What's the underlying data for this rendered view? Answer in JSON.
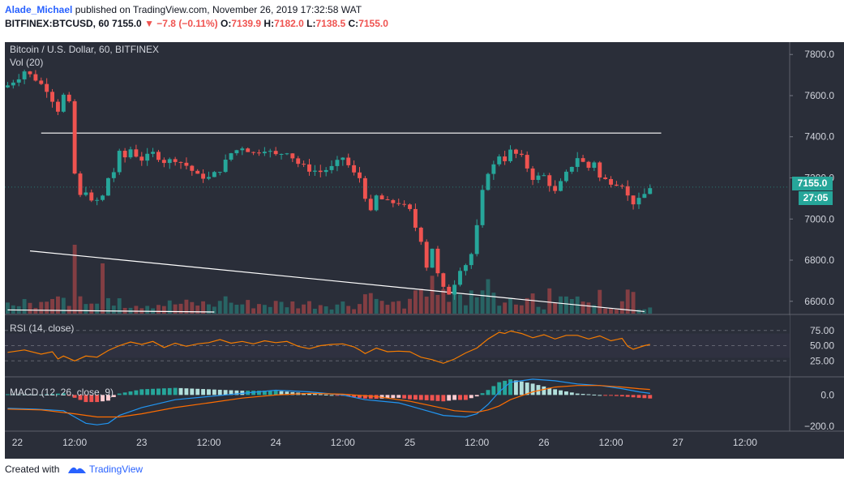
{
  "header": {
    "author": "Alade_Michael",
    "published": "published on TradingView.com, November 26, 2019 17:32:58 WAT",
    "symbol_line": "BITFINEX:BTCUSD, 60",
    "last": "7155.0",
    "change": "▼ −7.8 (−0.11%)",
    "o_label": "O:",
    "o": "7139.9",
    "h_label": "H:",
    "h": "7182.0",
    "l_label": "L:",
    "l": "7138.5",
    "c_label": "C:",
    "c": "7155.0"
  },
  "overlay": {
    "series_title": "Bitcoin / U.S. Dollar, 60, BITFINEX",
    "vol_label": "Vol (20)",
    "rsi_label": "RSI (14, close)",
    "macd_label": "MACD (12, 26, close, 9)",
    "price_tag": "7155.0",
    "countdown": "27:05"
  },
  "footer": {
    "created_with": "Created with",
    "brand": "TradingView"
  },
  "colors": {
    "background": "#2a2e39",
    "up": "#26a69a",
    "down": "#ef5350",
    "rsi": "#f57c00",
    "macd": "#2196f3",
    "signal": "#ff6d00",
    "axis_text": "#d1d4dc",
    "trendline": "#ffffff"
  },
  "chart_data": {
    "type": "candlestick",
    "price_axis": {
      "ticks": [
        6600,
        6800,
        7000,
        7200,
        7400,
        7600,
        7800
      ],
      "tick_labels": [
        "6600.0",
        "6800.0",
        "7000.0",
        "7200.0",
        "7400.0",
        "7600.0",
        "7800.0"
      ]
    },
    "rsi_axis": {
      "ticks": [
        25,
        50,
        75
      ],
      "tick_labels": [
        "25.00",
        "50.00",
        "75.00"
      ]
    },
    "macd_axis": {
      "ticks": [
        -200,
        0
      ],
      "tick_labels": [
        "−200.0",
        "0.0"
      ]
    },
    "time_axis": {
      "labels": [
        "22",
        "12:00",
        "23",
        "12:00",
        "24",
        "12:00",
        "25",
        "12:00",
        "26",
        "12:00",
        "27",
        "12:00"
      ],
      "hours": [
        0,
        12,
        24,
        36,
        48,
        60,
        72,
        84,
        96,
        108,
        120,
        132
      ]
    },
    "hour_range": [
      -0.5,
      140
    ],
    "trendlines": [
      {
        "name": "resistance",
        "from": [
          6,
          7418
        ],
        "to": [
          117,
          7418
        ]
      },
      {
        "name": "support",
        "from": [
          4,
          6845
        ],
        "to": [
          114,
          6550
        ]
      },
      {
        "name": "upper-left",
        "from": [
          0,
          6558
        ],
        "to": [
          37,
          6548
        ]
      }
    ],
    "close_path": [
      [
        0,
        7650
      ],
      [
        2,
        7690
      ],
      [
        3,
        7720
      ],
      [
        5,
        7680
      ],
      [
        7,
        7630
      ],
      [
        9,
        7530
      ],
      [
        10,
        7600
      ],
      [
        11,
        7560
      ],
      [
        12,
        7220
      ],
      [
        13,
        7110
      ],
      [
        14,
        7140
      ],
      [
        15,
        7080
      ],
      [
        16,
        7090
      ],
      [
        17,
        7110
      ],
      [
        18,
        7200
      ],
      [
        19,
        7230
      ],
      [
        20,
        7320
      ],
      [
        21,
        7300
      ],
      [
        22,
        7340
      ],
      [
        23,
        7310
      ],
      [
        24,
        7290
      ],
      [
        26,
        7320
      ],
      [
        28,
        7280
      ],
      [
        30,
        7290
      ],
      [
        32,
        7260
      ],
      [
        34,
        7210
      ],
      [
        36,
        7200
      ],
      [
        38,
        7240
      ],
      [
        40,
        7320
      ],
      [
        42,
        7350
      ],
      [
        44,
        7320
      ],
      [
        46,
        7340
      ],
      [
        48,
        7310
      ],
      [
        50,
        7330
      ],
      [
        52,
        7270
      ],
      [
        54,
        7240
      ],
      [
        56,
        7230
      ],
      [
        58,
        7250
      ],
      [
        60,
        7300
      ],
      [
        62,
        7220
      ],
      [
        63,
        7200
      ],
      [
        64,
        7110
      ],
      [
        65,
        7030
      ],
      [
        66,
        7110
      ],
      [
        68,
        7080
      ],
      [
        70,
        7080
      ],
      [
        72,
        7040
      ],
      [
        73,
        6960
      ],
      [
        74,
        6900
      ],
      [
        75,
        6770
      ],
      [
        76,
        6860
      ],
      [
        77,
        6730
      ],
      [
        78,
        6660
      ],
      [
        79,
        6640
      ],
      [
        80,
        6690
      ],
      [
        81,
        6760
      ],
      [
        82,
        6780
      ],
      [
        83,
        6830
      ],
      [
        84,
        6960
      ],
      [
        85,
        7130
      ],
      [
        86,
        7230
      ],
      [
        87,
        7260
      ],
      [
        88,
        7310
      ],
      [
        89,
        7290
      ],
      [
        90,
        7330
      ],
      [
        92,
        7300
      ],
      [
        94,
        7200
      ],
      [
        96,
        7210
      ],
      [
        98,
        7130
      ],
      [
        100,
        7220
      ],
      [
        102,
        7300
      ],
      [
        104,
        7250
      ],
      [
        105,
        7280
      ],
      [
        106,
        7200
      ],
      [
        108,
        7180
      ],
      [
        110,
        7170
      ],
      [
        111,
        7110
      ],
      [
        112,
        7080
      ],
      [
        113,
        7090
      ],
      [
        114,
        7120
      ],
      [
        115,
        7155
      ]
    ],
    "volume_spikes": [
      {
        "hour": 12,
        "relative": 1.0,
        "direction": "down"
      },
      {
        "hour": 17,
        "relative": 0.73,
        "direction": "down"
      },
      {
        "hour": 76,
        "relative": 0.55,
        "direction": "down"
      },
      {
        "hour": 86,
        "relative": 0.5,
        "direction": "up"
      }
    ],
    "rsi_path": [
      [
        0,
        39
      ],
      [
        3,
        43
      ],
      [
        6,
        36
      ],
      [
        8,
        40
      ],
      [
        9,
        28
      ],
      [
        10,
        33
      ],
      [
        12,
        25
      ],
      [
        14,
        33
      ],
      [
        16,
        31
      ],
      [
        18,
        42
      ],
      [
        20,
        50
      ],
      [
        22,
        56
      ],
      [
        24,
        52
      ],
      [
        26,
        57
      ],
      [
        28,
        47
      ],
      [
        30,
        54
      ],
      [
        32,
        49
      ],
      [
        34,
        53
      ],
      [
        36,
        55
      ],
      [
        38,
        60
      ],
      [
        40,
        54
      ],
      [
        42,
        57
      ],
      [
        44,
        53
      ],
      [
        46,
        58
      ],
      [
        48,
        55
      ],
      [
        50,
        57
      ],
      [
        52,
        49
      ],
      [
        54,
        45
      ],
      [
        56,
        50
      ],
      [
        58,
        52
      ],
      [
        60,
        53
      ],
      [
        62,
        48
      ],
      [
        63,
        43
      ],
      [
        64,
        37
      ],
      [
        66,
        46
      ],
      [
        68,
        40
      ],
      [
        70,
        41
      ],
      [
        72,
        40
      ],
      [
        74,
        31
      ],
      [
        76,
        27
      ],
      [
        78,
        21
      ],
      [
        80,
        28
      ],
      [
        82,
        38
      ],
      [
        84,
        46
      ],
      [
        86,
        61
      ],
      [
        88,
        72
      ],
      [
        89,
        70
      ],
      [
        90,
        74
      ],
      [
        92,
        70
      ],
      [
        94,
        63
      ],
      [
        96,
        68
      ],
      [
        98,
        61
      ],
      [
        100,
        67
      ],
      [
        102,
        67
      ],
      [
        104,
        61
      ],
      [
        106,
        66
      ],
      [
        108,
        58
      ],
      [
        110,
        62
      ],
      [
        111,
        49
      ],
      [
        112,
        44
      ],
      [
        114,
        50
      ],
      [
        115,
        52
      ]
    ],
    "macd_line": [
      [
        0,
        -85
      ],
      [
        5,
        -90
      ],
      [
        10,
        -100
      ],
      [
        12,
        -140
      ],
      [
        14,
        -180
      ],
      [
        16,
        -190
      ],
      [
        18,
        -180
      ],
      [
        20,
        -130
      ],
      [
        24,
        -80
      ],
      [
        30,
        -30
      ],
      [
        36,
        -10
      ],
      [
        42,
        10
      ],
      [
        48,
        30
      ],
      [
        54,
        20
      ],
      [
        60,
        0
      ],
      [
        64,
        -30
      ],
      [
        70,
        -50
      ],
      [
        74,
        -90
      ],
      [
        78,
        -130
      ],
      [
        82,
        -140
      ],
      [
        84,
        -120
      ],
      [
        86,
        -60
      ],
      [
        88,
        20
      ],
      [
        90,
        80
      ],
      [
        94,
        100
      ],
      [
        98,
        90
      ],
      [
        102,
        70
      ],
      [
        106,
        60
      ],
      [
        110,
        40
      ],
      [
        113,
        20
      ],
      [
        115,
        10
      ]
    ],
    "signal_line": [
      [
        0,
        -90
      ],
      [
        6,
        -95
      ],
      [
        12,
        -120
      ],
      [
        16,
        -140
      ],
      [
        20,
        -140
      ],
      [
        24,
        -120
      ],
      [
        30,
        -80
      ],
      [
        36,
        -50
      ],
      [
        42,
        -20
      ],
      [
        48,
        0
      ],
      [
        54,
        10
      ],
      [
        60,
        5
      ],
      [
        66,
        -10
      ],
      [
        72,
        -40
      ],
      [
        76,
        -70
      ],
      [
        80,
        -100
      ],
      [
        84,
        -110
      ],
      [
        86,
        -95
      ],
      [
        88,
        -70
      ],
      [
        90,
        -30
      ],
      [
        94,
        20
      ],
      [
        98,
        50
      ],
      [
        102,
        60
      ],
      [
        106,
        60
      ],
      [
        110,
        50
      ],
      [
        113,
        40
      ],
      [
        115,
        35
      ]
    ]
  }
}
